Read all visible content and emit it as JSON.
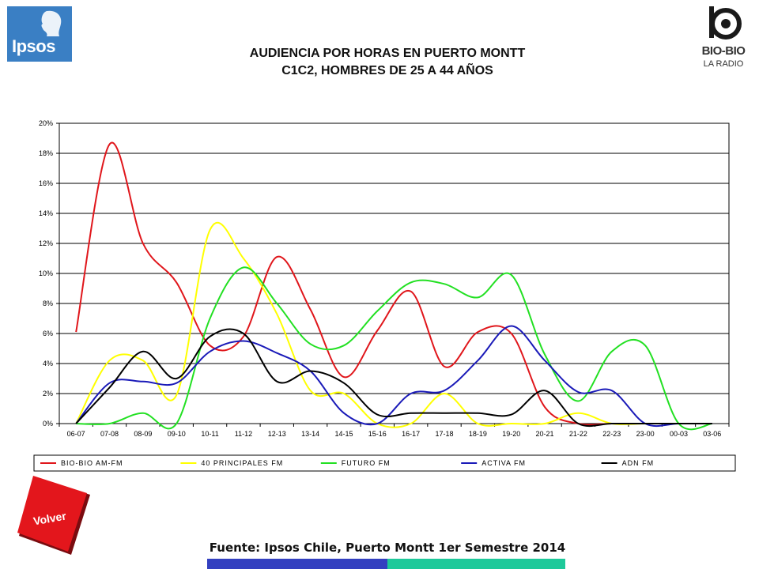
{
  "header": {
    "title_line1": "AUDIENCIA POR HORAS EN PUERTO MONTT",
    "title_line2": "C1C2, HOMBRES DE 25 A 44 AÑOS",
    "logo_left": "Ipsos",
    "logo_right_name": "BIO-BIO",
    "logo_right_sub": "LA RADIO"
  },
  "footer": {
    "source": "Fuente: Ipsos Chile, Puerto Montt 1er Semestre 2014",
    "back_button": "Volver"
  },
  "chart_data": {
    "type": "line",
    "categories": [
      "06-07",
      "07-08",
      "08-09",
      "09-10",
      "10-11",
      "11-12",
      "12-13",
      "13-14",
      "14-15",
      "15-16",
      "16-17",
      "17-18",
      "18-19",
      "19-20",
      "20-21",
      "21-22",
      "22-23",
      "23-00",
      "00-03",
      "03-06"
    ],
    "ylim": [
      0,
      20
    ],
    "yticks": [
      "0%",
      "2%",
      "4%",
      "6%",
      "8%",
      "10%",
      "12%",
      "14%",
      "16%",
      "18%",
      "20%"
    ],
    "grid": true,
    "legend_position": "bottom",
    "series": [
      {
        "name": "BIO-BIO AM-FM",
        "color": "#e0161b",
        "values": [
          6.1,
          18.6,
          12.0,
          9.4,
          5.2,
          5.8,
          11.1,
          7.6,
          3.1,
          6.2,
          8.8,
          3.8,
          6.1,
          6.0,
          1.1,
          0.0,
          0.0,
          0.0,
          0.0,
          0.0
        ]
      },
      {
        "name": "40 PRINCIPALES FM",
        "color": "#ffff00",
        "values": [
          0.0,
          4.2,
          4.2,
          1.9,
          12.9,
          11.0,
          7.3,
          2.2,
          2.0,
          0.0,
          0.0,
          2.0,
          0.0,
          0.0,
          0.0,
          0.7,
          0.0,
          0.0,
          0.0,
          0.0
        ]
      },
      {
        "name": "FUTURO FM",
        "color": "#22e022",
        "values": [
          0.0,
          0.0,
          0.7,
          0.0,
          7.0,
          10.4,
          8.0,
          5.3,
          5.2,
          7.5,
          9.4,
          9.3,
          8.4,
          9.9,
          4.6,
          1.5,
          4.8,
          5.2,
          0.0,
          0.0
        ]
      },
      {
        "name": "ACTIVA FM",
        "color": "#1a1ab8",
        "values": [
          0.0,
          2.7,
          2.8,
          2.7,
          4.8,
          5.5,
          4.7,
          3.5,
          0.7,
          0.0,
          2.0,
          2.2,
          4.2,
          6.5,
          4.2,
          2.1,
          2.2,
          0.0,
          0.0,
          0.0
        ]
      },
      {
        "name": "ADN FM",
        "color": "#000000",
        "values": [
          0.0,
          2.4,
          4.8,
          3.0,
          5.8,
          6.0,
          2.8,
          3.5,
          2.7,
          0.6,
          0.7,
          0.7,
          0.7,
          0.6,
          2.2,
          0.0,
          0.0,
          0.0,
          0.0,
          0.0
        ]
      }
    ]
  }
}
